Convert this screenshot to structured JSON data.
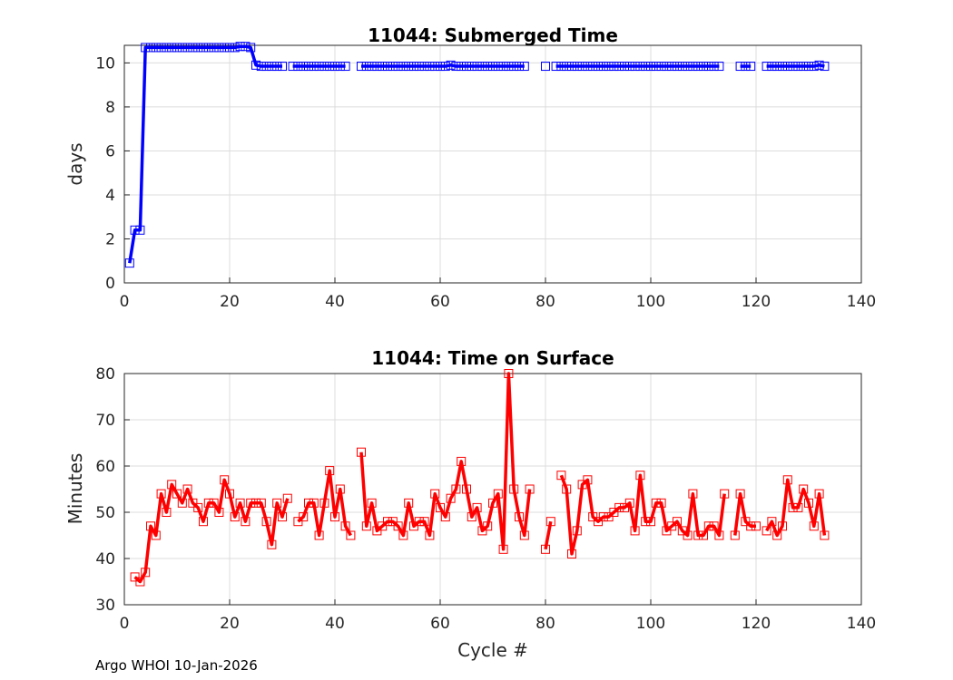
{
  "footer": "Argo WHOI 10-Jan-2026",
  "chart_data": [
    {
      "type": "line",
      "title": "11044: Submerged Time",
      "xlabel": "",
      "ylabel": "days",
      "xlim": [
        0,
        140
      ],
      "ylim": [
        0,
        10.8
      ],
      "xticks": [
        0,
        20,
        40,
        60,
        80,
        100,
        120,
        140
      ],
      "yticks": [
        0,
        2,
        4,
        6,
        8,
        10
      ],
      "grid": true,
      "color": "#0000ff",
      "marker": "square",
      "series": [
        {
          "name": "Submerged Time",
          "x": [
            1,
            2,
            3,
            4,
            5,
            6,
            7,
            8,
            9,
            10,
            11,
            12,
            13,
            14,
            15,
            16,
            17,
            18,
            19,
            20,
            21,
            22,
            23,
            24,
            25,
            26,
            27,
            28,
            29,
            30,
            32,
            33,
            34,
            35,
            36,
            37,
            38,
            39,
            40,
            41,
            42,
            45,
            46,
            47,
            48,
            49,
            50,
            51,
            52,
            53,
            54,
            55,
            56,
            57,
            58,
            59,
            60,
            61,
            62,
            63,
            64,
            65,
            66,
            67,
            68,
            69,
            70,
            71,
            72,
            73,
            74,
            75,
            76,
            80,
            82,
            83,
            84,
            85,
            86,
            87,
            88,
            89,
            90,
            91,
            92,
            93,
            94,
            95,
            96,
            97,
            98,
            99,
            100,
            101,
            102,
            103,
            104,
            105,
            106,
            107,
            108,
            109,
            110,
            111,
            112,
            113,
            117,
            118,
            119,
            122,
            123,
            124,
            125,
            126,
            127,
            128,
            129,
            130,
            131,
            132,
            133
          ],
          "y": [
            0.9,
            2.4,
            2.4,
            10.7,
            10.7,
            10.7,
            10.7,
            10.7,
            10.7,
            10.7,
            10.7,
            10.7,
            10.7,
            10.7,
            10.7,
            10.7,
            10.7,
            10.7,
            10.7,
            10.7,
            10.7,
            10.75,
            10.75,
            10.7,
            9.9,
            9.85,
            9.85,
            9.85,
            9.85,
            9.85,
            9.85,
            9.85,
            9.85,
            9.85,
            9.85,
            9.85,
            9.85,
            9.85,
            9.85,
            9.85,
            9.85,
            9.85,
            9.85,
            9.85,
            9.85,
            9.85,
            9.85,
            9.85,
            9.85,
            9.85,
            9.85,
            9.85,
            9.85,
            9.85,
            9.85,
            9.85,
            9.85,
            9.85,
            9.9,
            9.85,
            9.85,
            9.85,
            9.85,
            9.85,
            9.85,
            9.85,
            9.85,
            9.85,
            9.85,
            9.85,
            9.85,
            9.85,
            9.85,
            9.85,
            9.85,
            9.85,
            9.85,
            9.85,
            9.85,
            9.85,
            9.85,
            9.85,
            9.85,
            9.85,
            9.85,
            9.85,
            9.85,
            9.85,
            9.85,
            9.85,
            9.85,
            9.85,
            9.85,
            9.85,
            9.85,
            9.85,
            9.85,
            9.85,
            9.85,
            9.85,
            9.85,
            9.85,
            9.85,
            9.85,
            9.85,
            9.85,
            9.85,
            9.85,
            9.85,
            9.85,
            9.85,
            9.85,
            9.85,
            9.85,
            9.85,
            9.85,
            9.85,
            9.85,
            9.85,
            9.9,
            9.85
          ]
        }
      ]
    },
    {
      "type": "line",
      "title": "11044: Time on Surface",
      "xlabel": "Cycle #",
      "ylabel": "Minutes",
      "xlim": [
        0,
        140
      ],
      "ylim": [
        30,
        80
      ],
      "xticks": [
        0,
        20,
        40,
        60,
        80,
        100,
        120,
        140
      ],
      "yticks": [
        30,
        40,
        50,
        60,
        70,
        80
      ],
      "grid": true,
      "color": "#ff0000",
      "marker": "square",
      "series": [
        {
          "name": "Time on Surface",
          "x": [
            2,
            3,
            4,
            5,
            6,
            7,
            8,
            9,
            10,
            11,
            12,
            13,
            14,
            15,
            16,
            17,
            18,
            19,
            20,
            21,
            22,
            23,
            24,
            25,
            26,
            27,
            28,
            29,
            30,
            31,
            33,
            34,
            35,
            36,
            37,
            38,
            39,
            40,
            41,
            42,
            43,
            45,
            46,
            47,
            48,
            49,
            50,
            51,
            52,
            53,
            54,
            55,
            56,
            57,
            58,
            59,
            60,
            61,
            62,
            63,
            64,
            65,
            66,
            67,
            68,
            69,
            70,
            71,
            72,
            73,
            74,
            75,
            76,
            77,
            80,
            81,
            83,
            84,
            85,
            86,
            87,
            88,
            89,
            90,
            91,
            92,
            93,
            94,
            95,
            96,
            97,
            98,
            99,
            100,
            101,
            102,
            103,
            104,
            105,
            106,
            107,
            108,
            109,
            110,
            111,
            112,
            113,
            114,
            116,
            117,
            118,
            119,
            120,
            122,
            123,
            124,
            125,
            126,
            127,
            128,
            129,
            130,
            131,
            132,
            133
          ],
          "y": [
            36,
            35,
            37,
            47,
            45,
            54,
            50,
            56,
            54,
            52,
            55,
            52,
            51,
            48,
            52,
            52,
            50,
            57,
            54,
            49,
            52,
            48,
            52,
            52,
            52,
            48,
            43,
            52,
            49,
            53,
            48,
            49,
            52,
            52,
            45,
            52,
            59,
            49,
            55,
            47,
            45,
            63,
            47,
            52,
            46,
            47,
            48,
            48,
            47,
            45,
            52,
            47,
            48,
            48,
            45,
            54,
            51,
            49,
            53,
            55,
            61,
            55,
            49,
            51,
            46,
            47,
            52,
            54,
            42,
            80,
            55,
            49,
            45,
            55,
            42,
            48,
            58,
            55,
            41,
            46,
            56,
            57,
            49,
            48,
            49,
            49,
            50,
            51,
            51,
            52,
            46,
            58,
            48,
            48,
            52,
            52,
            46,
            47,
            48,
            46,
            45,
            54,
            45,
            45,
            47,
            47,
            45,
            54,
            45,
            54,
            48,
            47,
            47,
            46,
            48,
            45,
            47,
            57,
            51,
            51,
            55,
            52,
            47,
            54,
            45
          ]
        }
      ]
    }
  ]
}
